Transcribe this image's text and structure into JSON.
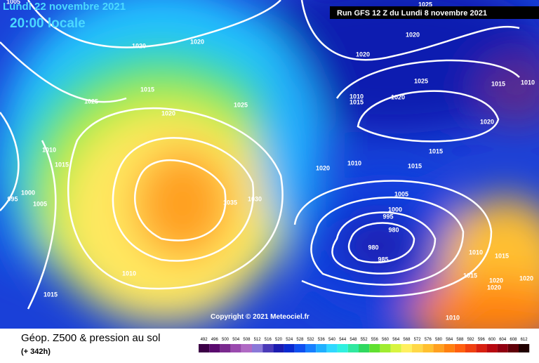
{
  "header": {
    "date": "Lundi 22 novembre 2021",
    "time": "20:00 locale",
    "run": "Run GFS 12 Z du Lundi 8 novembre 2021"
  },
  "map": {
    "copyright": "Copyright © 2021 Meteociel.fr",
    "isobar_labels": [
      "1005",
      "1025",
      "1020",
      "1020",
      "1015",
      "1025",
      "1020",
      "1025",
      "1010",
      "1015",
      "1000",
      "995",
      "1005",
      "1035",
      "1030",
      "1010",
      "1015",
      "1020",
      "1020",
      "1025",
      "1015",
      "1010",
      "1010",
      "1015",
      "1020",
      "1020",
      "1015",
      "1010",
      "1020",
      "1015",
      "1005",
      "1000",
      "995",
      "980",
      "980",
      "985",
      "1010",
      "1015",
      "1015",
      "1020",
      "1020",
      "1020",
      "1010"
    ]
  },
  "footer": {
    "title": "Géop. Z500 & pression au sol",
    "subtitle": "(+ 342h)"
  },
  "scale": {
    "values": [
      492,
      496,
      500,
      504,
      508,
      512,
      516,
      520,
      524,
      528,
      532,
      536,
      540,
      544,
      548,
      552,
      556,
      560,
      564,
      568,
      572,
      576,
      580,
      584,
      588,
      592,
      596,
      600,
      604,
      608,
      612
    ],
    "colors": [
      "#3c0046",
      "#5a0a6e",
      "#7a2a8e",
      "#9a4aae",
      "#b06ac4",
      "#8a78d8",
      "#4a3ab8",
      "#1c1cb0",
      "#0a2ad0",
      "#1050f0",
      "#1880ff",
      "#20b0ff",
      "#30d8ff",
      "#30f0e0",
      "#30e8a0",
      "#30d860",
      "#60e030",
      "#a0ec30",
      "#d8f440",
      "#fff060",
      "#ffd848",
      "#ffc030",
      "#ffa020",
      "#ff8010",
      "#ff6010",
      "#f04010",
      "#d82010",
      "#b80810",
      "#900010",
      "#600008",
      "#200000"
    ]
  }
}
